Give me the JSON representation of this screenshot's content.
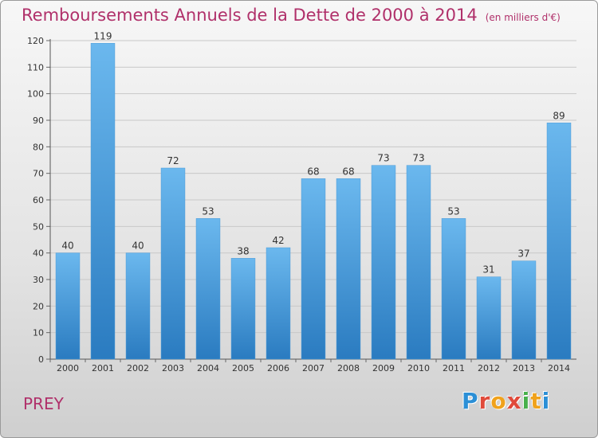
{
  "header": {
    "title": "Remboursements Annuels de la Dette de 2000 à 2014",
    "unit": "(en milliers d'€)"
  },
  "footer": {
    "commune": "PREY",
    "logo_letters": [
      "P",
      "r",
      "o",
      "x",
      "i",
      "t",
      "i"
    ]
  },
  "colors": {
    "bar_top": "#6bb8ee",
    "bar_bottom": "#2a7bc0",
    "title": "#b0306a",
    "grid": "#c8c8c8"
  },
  "chart_data": {
    "type": "bar",
    "title": "Remboursements Annuels de la Dette de 2000 à 2014",
    "xlabel": "",
    "ylabel": "",
    "ylim": [
      0,
      120
    ],
    "yticks": [
      0,
      10,
      20,
      30,
      40,
      50,
      60,
      70,
      80,
      90,
      100,
      110,
      120
    ],
    "grid": true,
    "categories": [
      "2000",
      "2001",
      "2002",
      "2003",
      "2004",
      "2005",
      "2006",
      "2007",
      "2008",
      "2009",
      "2010",
      "2011",
      "2012",
      "2013",
      "2014"
    ],
    "values": [
      40,
      119,
      40,
      72,
      53,
      38,
      42,
      68,
      68,
      73,
      73,
      53,
      31,
      37,
      89
    ]
  }
}
